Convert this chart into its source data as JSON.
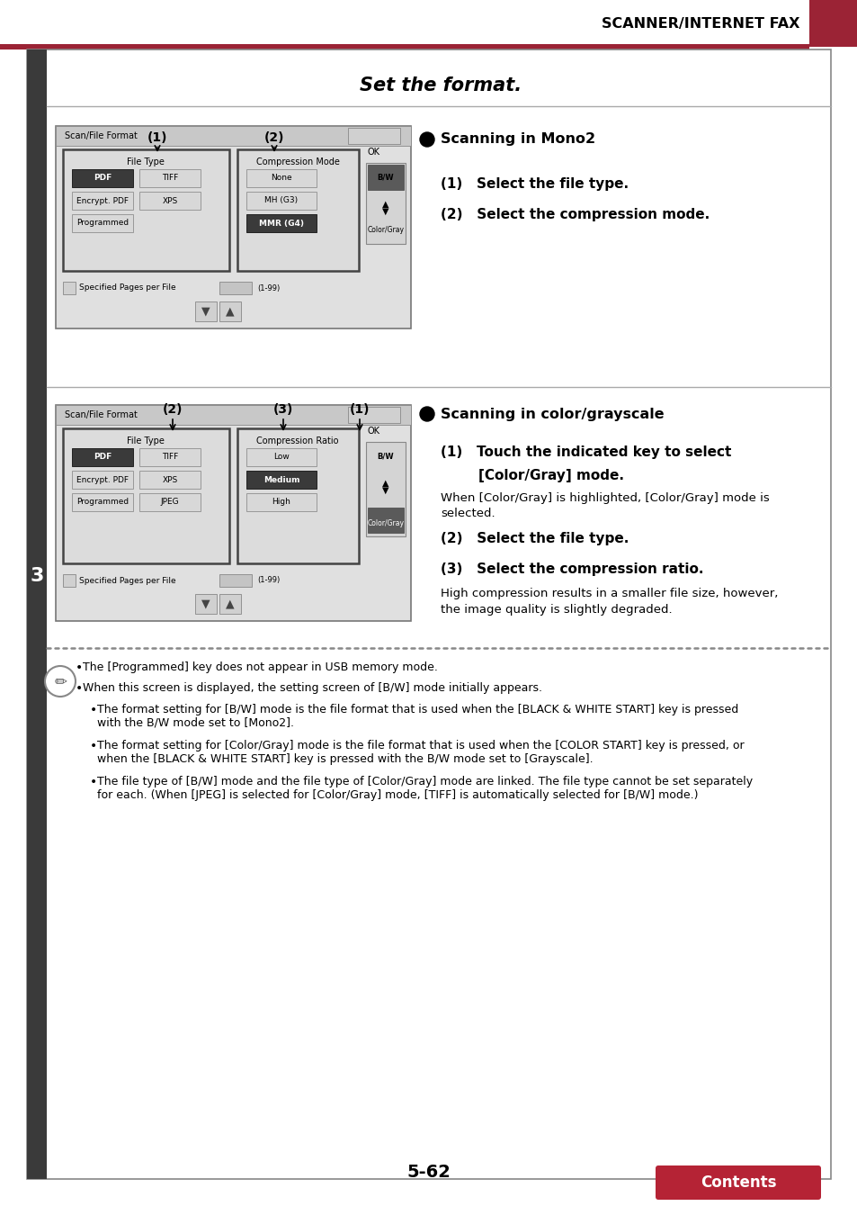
{
  "header_text": "SCANNER/INTERNET FAX",
  "header_red": "#9b2335",
  "page_bg": "#ffffff",
  "sidebar_color": "#3a3a3a",
  "section_title": "Set the format.",
  "mono2_heading": "Scanning in Mono2",
  "mono2_step1": "(1)   Select the file type.",
  "mono2_step2": "(2)   Select the compression mode.",
  "color_heading": "Scanning in color/grayscale",
  "color_step1a": "(1)   Touch the indicated key to select",
  "color_step1b": "        [Color/Gray] mode.",
  "color_step1_note": "When [Color/Gray] is highlighted, [Color/Gray] mode is\nselected.",
  "color_step2": "(2)   Select the file type.",
  "color_step3": "(3)   Select the compression ratio.",
  "color_step3_note": "High compression results in a smaller file size, however,\nthe image quality is slightly degraded.",
  "note_bullets": [
    "The [Programmed] key does not appear in USB memory mode.",
    "When this screen is displayed, the setting screen of [B/W] mode initially appears.",
    "The format setting for [B/W] mode is the file format that is used when the [BLACK & WHITE START] key is pressed\nwith the B/W mode set to [Mono2].",
    "The format setting for [Color/Gray] mode is the file format that is used when the [COLOR START] key is pressed, or\nwhen the [BLACK & WHITE START] key is pressed with the B/W mode set to [Grayscale].",
    "The file type of [B/W] mode and the file type of [Color/Gray] mode are linked. The file type cannot be set separately\nfor each. (When [JPEG] is selected for [Color/Gray] mode, [TIFF] is automatically selected for [B/W] mode.)"
  ],
  "page_number": "5-62",
  "contents_btn_color": "#b52335"
}
